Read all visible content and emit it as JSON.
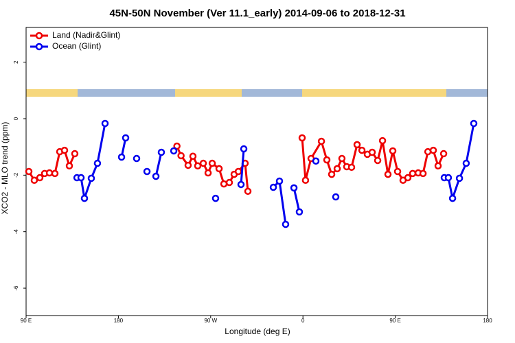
{
  "chart_data": {
    "type": "line",
    "title": "45N-50N November (Ver 11.1_early)   2014-09-06 to 2018-12-31",
    "xlabel": "Longitude (deg E)",
    "ylabel": "XCO2 - MLO trend (ppm)",
    "xlim": [
      90,
      540
    ],
    "ylim": [
      -6.97,
      3.23
    ],
    "xticks": [
      {
        "value": 90,
        "label": "90 E"
      },
      180,
      {
        "value": 270,
        "label": "90 W"
      },
      {
        "value": 360,
        "label": "0"
      },
      {
        "value": 450,
        "label": "90 E"
      },
      {
        "value": 540,
        "label": "180"
      }
    ],
    "yticks": [
      -6,
      -4,
      -2,
      0,
      2
    ],
    "legend": "topleft",
    "series": [
      {
        "name": "Land (Nadir&Glint)",
        "color": "#ee0000",
        "x": [
          92.7,
          98,
          103.4,
          108.1,
          112.8,
          118.1,
          122.8,
          127.5,
          132.2,
          137.5,
          null,
          237.1,
          241.1,
          248,
          252.7,
          257.4,
          262.8,
          267.5,
          271.5,
          278.2,
          282.9,
          288.2,
          292.9,
          297,
          303.6,
          306.3,
          null,
          359.2,
          362.5,
          367.9,
          378,
          383.3,
          388,
          393.4,
          398,
          402.7,
          407.4,
          412.8,
          417.5,
          422.8,
          427.5,
          432.9,
          437.6,
          442.9,
          447.6,
          452.3,
          457.6,
          462.3,
          467,
          472.4,
          477.1,
          481.8,
          487.1,
          491.8,
          497.2
        ],
        "values": [
          -1.87,
          -2.18,
          -2.09,
          -1.94,
          -1.92,
          -1.94,
          -1.17,
          -1.12,
          -1.67,
          -1.24,
          null,
          -0.97,
          -1.31,
          -1.65,
          -1.33,
          -1.67,
          -1.58,
          -1.92,
          -1.58,
          -1.77,
          -2.31,
          -2.26,
          -1.97,
          -1.87,
          -1.58,
          -2.57,
          null,
          -0.68,
          -2.18,
          -1.41,
          -0.8,
          -1.46,
          -1.97,
          -1.77,
          -1.41,
          -1.7,
          -1.72,
          -0.92,
          -1.12,
          -1.26,
          -1.19,
          -1.48,
          -0.78,
          -1.97,
          -1.14,
          -1.87,
          -2.18,
          -2.09,
          -1.94,
          -1.92,
          -1.94,
          -1.17,
          -1.12,
          -1.67,
          -1.24
        ]
      },
      {
        "name": "Ocean (Glint)",
        "color": "#0000ee",
        "x": [
          139.6,
          143.6,
          146.9,
          153.6,
          159.6,
          167,
          null,
          183.1,
          187.1,
          null,
          197.8,
          null,
          207.9,
          null,
          216.6,
          221.9,
          null,
          234,
          null,
          274.8,
          null,
          299.6,
          302.3,
          null,
          331.1,
          337.1,
          343.1,
          null,
          351.2,
          356.5,
          null,
          372.6,
          null,
          392,
          null,
          497.8,
          501.8,
          505.9,
          512.6,
          519.2,
          526.6
        ],
        "values": [
          -2.09,
          -2.09,
          -2.82,
          -2.11,
          -1.58,
          -0.17,
          null,
          -1.36,
          -0.68,
          null,
          -1.41,
          null,
          -1.87,
          null,
          -2.04,
          -1.19,
          null,
          -1.14,
          null,
          -2.82,
          null,
          -2.33,
          -1.07,
          null,
          -2.43,
          -2.21,
          -3.74,
          null,
          -2.45,
          -3.3,
          null,
          -1.5,
          null,
          -2.77,
          null,
          -2.09,
          -2.09,
          -2.82,
          -2.11,
          -1.58,
          -0.17
        ]
      }
    ]
  }
}
